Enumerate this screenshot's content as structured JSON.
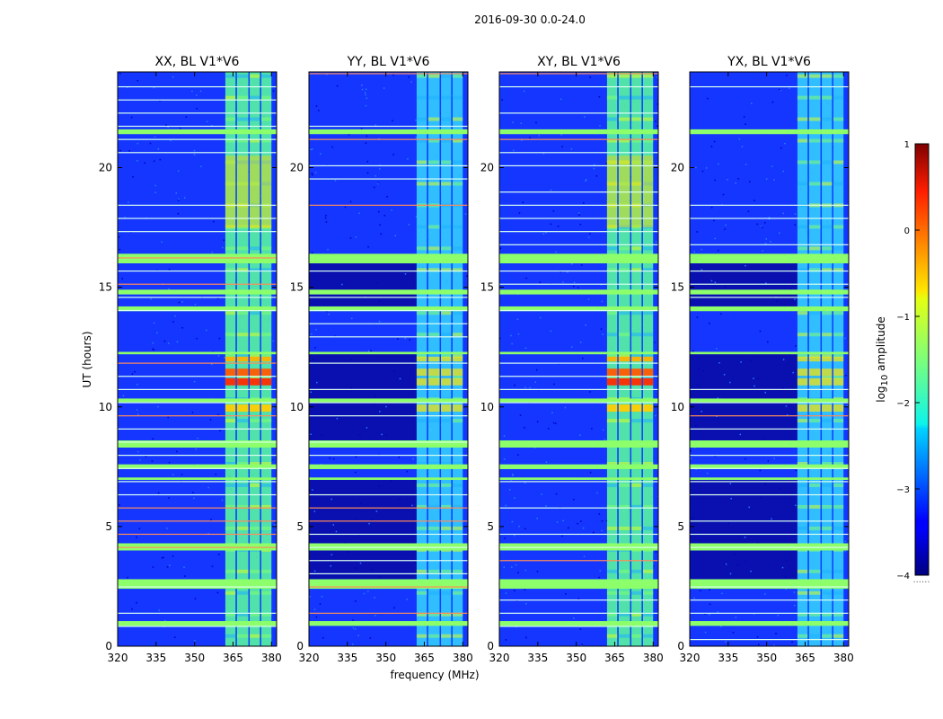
{
  "chart_data": {
    "type": "heatmap",
    "title": "2016-09-30 0.0-24.0",
    "xlabel": "frequency (MHz)",
    "ylabel": "UT (hours)",
    "xlim": [
      320,
      382
    ],
    "ylim": [
      0,
      24
    ],
    "xticks": [
      320,
      335,
      350,
      365,
      380
    ],
    "yticks": [
      0,
      5,
      10,
      15,
      20
    ],
    "panels": [
      {
        "title": "XX, BL V1*V6",
        "signal_level": 1.0
      },
      {
        "title": "YY, BL V1*V6",
        "signal_level": 0.55
      },
      {
        "title": "XY, BL V1*V6",
        "signal_level": 0.95
      },
      {
        "title": "YX, BL V1*V6",
        "signal_level": 0.55
      }
    ],
    "signal_band_mhz": [
      362,
      381
    ],
    "signal_subbands_mhz": [
      [
        362,
        366
      ],
      [
        366.5,
        371
      ],
      [
        371.5,
        375.5
      ],
      [
        376,
        380
      ]
    ],
    "rfi_bands_hours": [
      [
        0.85,
        1.05
      ],
      [
        2.4,
        2.8
      ],
      [
        4.0,
        4.3
      ],
      [
        6.95,
        7.05
      ],
      [
        7.4,
        7.6
      ],
      [
        8.3,
        8.6
      ],
      [
        10.2,
        10.35
      ],
      [
        12.2,
        12.3
      ],
      [
        14.0,
        14.2
      ],
      [
        14.7,
        14.9
      ],
      [
        16.0,
        16.4
      ],
      [
        21.4,
        21.6
      ]
    ],
    "colorbar": {
      "label": "log",
      "label_sub": "10",
      "label_suffix": " amplitude",
      "range": [
        -4,
        1
      ],
      "ticks": [
        "1",
        "0",
        "−1",
        "−2",
        "−3",
        "−4"
      ],
      "extra_label": "......"
    }
  }
}
